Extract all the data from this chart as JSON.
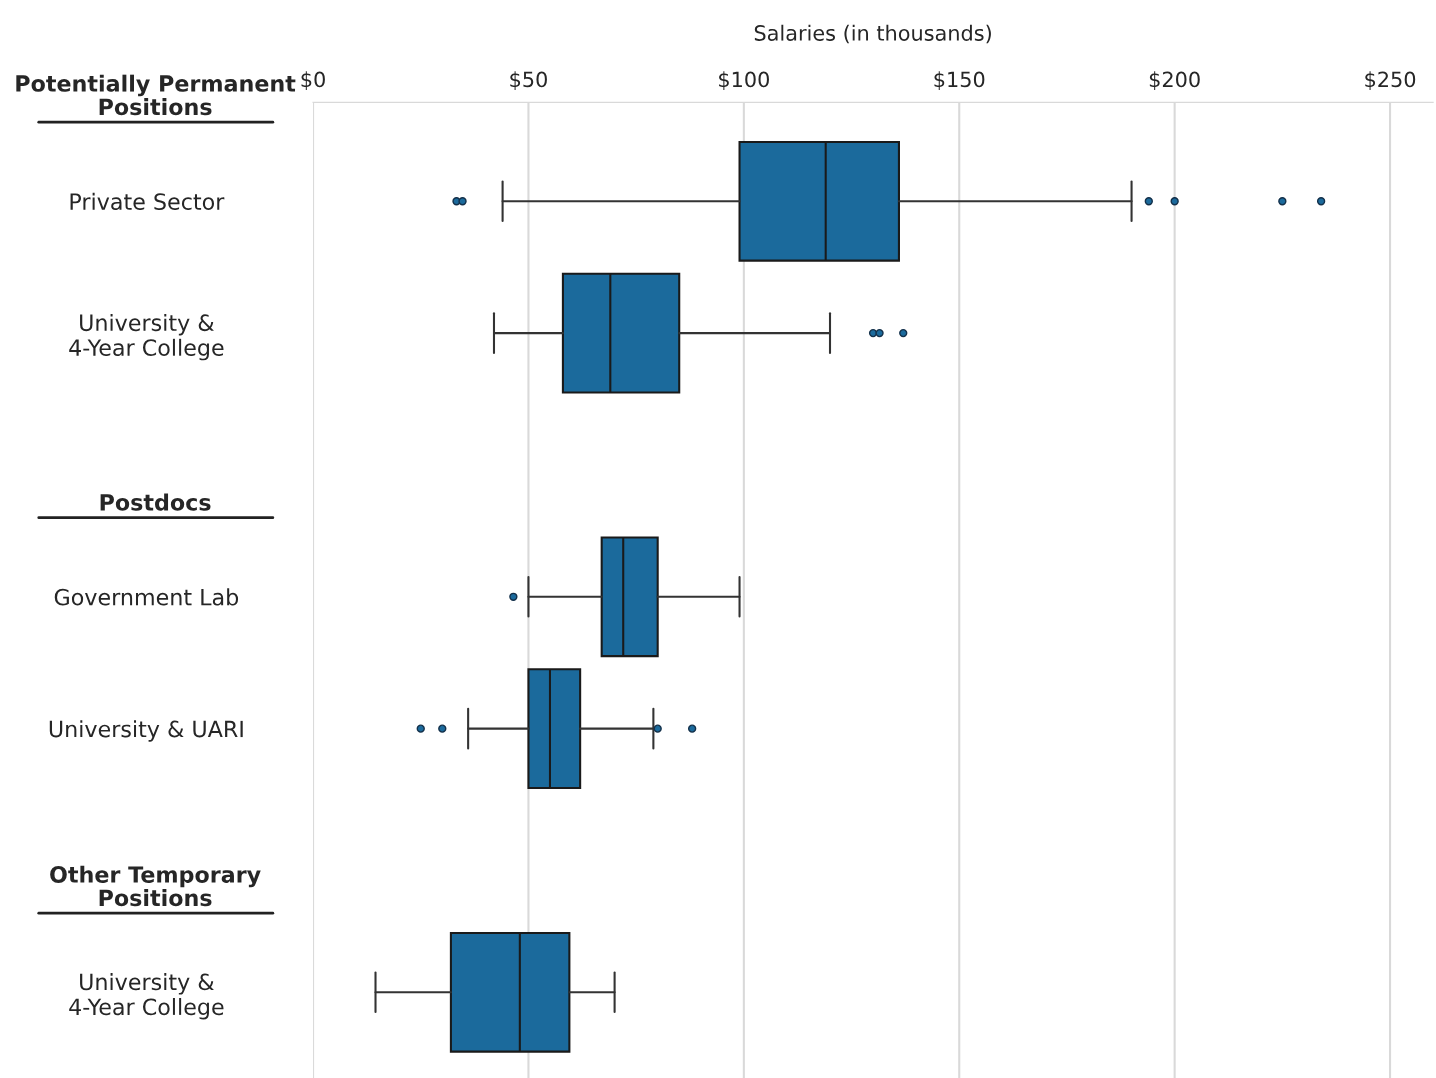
{
  "chart_data": {
    "type": "box",
    "xlabel": "Salaries (in thousands)",
    "orientation": "horizontal",
    "categories": [
      "Private Sector",
      "University &\n4-Year College",
      "Government Lab",
      "University & UARI",
      "University &\n4-Year College"
    ],
    "annotations": [
      "Potentially Permanent\nPositions",
      "Postdocs",
      "Other Temporary\nPositions"
    ],
    "color": "#1b6a9c",
    "boxes": [
      {
        "low": 44,
        "q1": 99,
        "median": 119,
        "q3": 136,
        "high": 190,
        "outliers": [
          33.3,
          34.7,
          194,
          200,
          225,
          234
        ]
      },
      {
        "low": 42,
        "q1": 58,
        "median": 69,
        "q3": 85,
        "high": 120,
        "outliers": [
          130,
          131.5,
          137
        ]
      },
      {
        "low": 50,
        "q1": 67,
        "median": 72,
        "q3": 80,
        "high": 99,
        "outliers": [
          46.5
        ]
      },
      {
        "low": 36,
        "q1": 50,
        "median": 55,
        "q3": 62,
        "high": 79,
        "outliers": [
          25,
          30,
          80,
          88
        ]
      },
      {
        "low": 14.5,
        "q1": 32,
        "median": 48,
        "q3": 59.5,
        "high": 70
      }
    ],
    "xlim": [
      0,
      260
    ],
    "xticks": [
      {
        "value": 0,
        "label": "$0"
      },
      {
        "value": 50,
        "label": "$50"
      },
      {
        "value": 100,
        "label": "$100"
      },
      {
        "value": 150,
        "label": "$150"
      },
      {
        "value": 200,
        "label": "$200"
      },
      {
        "value": 250,
        "label": "$250"
      }
    ],
    "grid": "x"
  }
}
